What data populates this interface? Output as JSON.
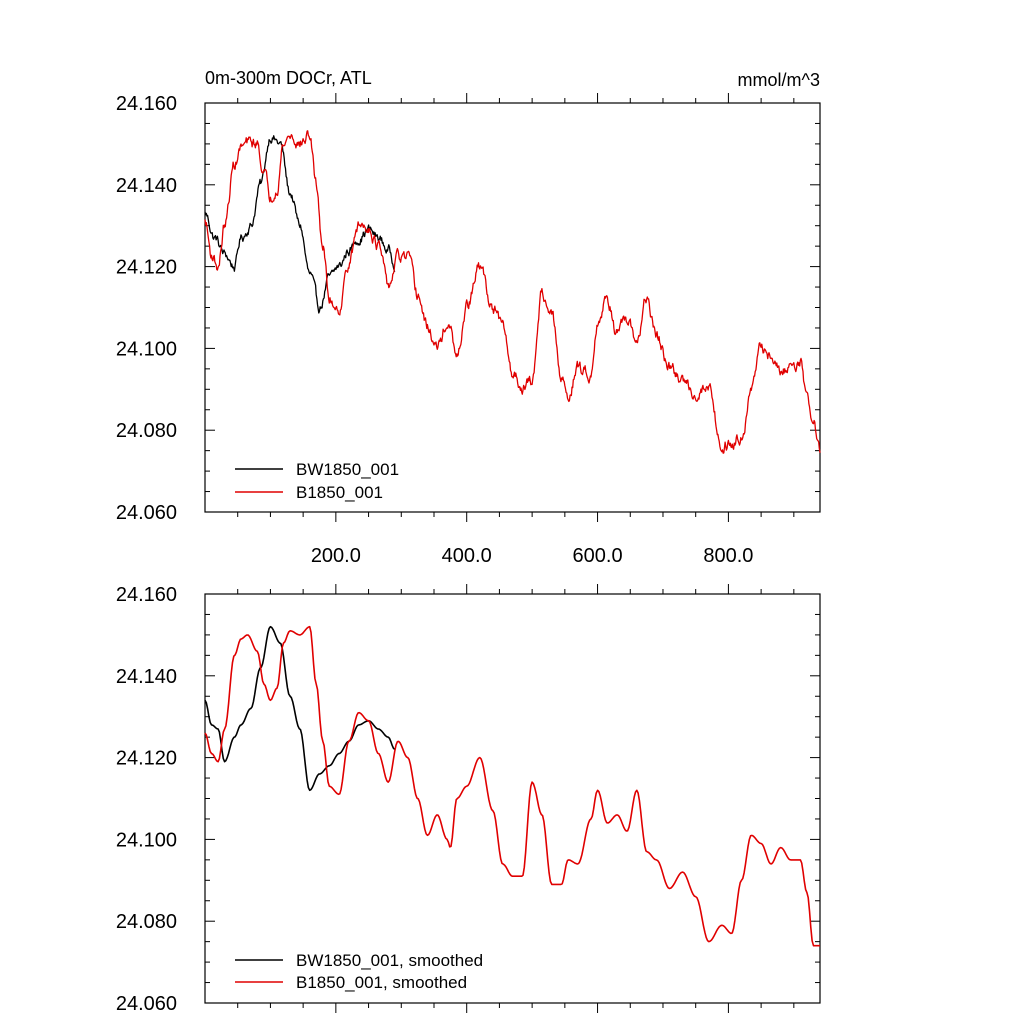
{
  "chart_data": [
    {
      "type": "line",
      "title": "0m-300m DOCr, ATL",
      "units": "mmol/m^3",
      "xlim": [
        0,
        940
      ],
      "ylim": [
        24.06,
        24.16
      ],
      "yticks": [
        "24.060",
        "24.080",
        "24.100",
        "24.120",
        "24.140",
        "24.160"
      ],
      "xticks": [
        "200.0",
        "400.0",
        "600.0",
        "800.0"
      ],
      "legend_position": "bottom-left",
      "series": [
        {
          "name": "BW1850_001",
          "color": "#000000",
          "x": [
            0,
            15,
            30,
            45,
            55,
            70,
            85,
            100,
            115,
            130,
            145,
            160,
            175,
            190,
            205,
            220,
            235,
            250,
            265,
            280,
            290
          ],
          "y": [
            24.133,
            24.127,
            24.123,
            24.12,
            24.127,
            24.13,
            24.14,
            24.152,
            24.15,
            24.138,
            24.13,
            24.118,
            24.11,
            24.117,
            24.12,
            24.124,
            24.127,
            24.129,
            24.127,
            24.124,
            24.121
          ],
          "noise": 0.0018
        },
        {
          "name": "B1850_001",
          "color": "#e00000",
          "x": [
            0,
            10,
            20,
            30,
            45,
            55,
            65,
            80,
            90,
            100,
            110,
            120,
            130,
            145,
            160,
            170,
            180,
            190,
            205,
            220,
            235,
            250,
            265,
            280,
            295,
            310,
            325,
            340,
            355,
            370,
            375,
            385,
            400,
            420,
            440,
            455,
            470,
            485,
            500,
            515,
            530,
            545,
            555,
            570,
            590,
            600,
            615,
            630,
            645,
            660,
            675,
            690,
            710,
            730,
            750,
            770,
            790,
            805,
            820,
            835,
            850,
            865,
            880,
            895,
            910,
            920,
            930,
            940
          ],
          "y": [
            24.131,
            24.123,
            24.12,
            24.13,
            24.145,
            24.149,
            24.15,
            24.15,
            24.143,
            24.137,
            24.14,
            24.15,
            24.152,
            24.15,
            24.152,
            24.14,
            24.125,
            24.112,
            24.11,
            24.121,
            24.13,
            24.13,
            24.125,
            24.115,
            24.122,
            24.122,
            24.113,
            24.105,
            24.1,
            24.106,
            24.104,
            24.097,
            24.11,
            24.12,
            24.11,
            24.105,
            24.094,
            24.091,
            24.092,
            24.114,
            24.108,
            24.092,
            24.089,
            24.095,
            24.094,
            24.107,
            24.112,
            24.104,
            24.106,
            24.102,
            24.112,
            24.103,
            24.095,
            24.092,
            24.089,
            24.091,
            24.076,
            24.077,
            24.079,
            24.09,
            24.1,
            24.098,
            24.094,
            24.096,
            24.097,
            24.088,
            24.082,
            24.075
          ],
          "noise": 0.0022
        }
      ]
    },
    {
      "type": "line",
      "xlim": [
        0,
        940
      ],
      "ylim": [
        24.06,
        24.16
      ],
      "yticks": [
        "24.060",
        "24.080",
        "24.100",
        "24.120",
        "24.140",
        "24.160"
      ],
      "legend_position": "bottom-left",
      "series": [
        {
          "name": "BW1850_001, smoothed",
          "color": "#000000",
          "x": [
            0,
            10,
            20,
            30,
            45,
            55,
            70,
            85,
            100,
            115,
            130,
            145,
            160,
            175,
            190,
            205,
            220,
            235,
            250,
            265,
            280,
            290
          ],
          "y": [
            24.134,
            24.128,
            24.127,
            24.119,
            24.125,
            24.128,
            24.132,
            24.142,
            24.152,
            24.148,
            24.135,
            24.127,
            24.112,
            24.116,
            24.118,
            24.121,
            24.124,
            24.128,
            24.129,
            24.127,
            24.125,
            24.122
          ],
          "noise": 0
        },
        {
          "name": "B1850_001, smoothed",
          "color": "#e00000",
          "x": [
            0,
            10,
            20,
            30,
            45,
            55,
            65,
            80,
            90,
            100,
            110,
            120,
            130,
            145,
            160,
            170,
            180,
            190,
            205,
            220,
            235,
            250,
            265,
            280,
            295,
            310,
            325,
            340,
            355,
            370,
            375,
            385,
            400,
            420,
            440,
            455,
            470,
            485,
            500,
            515,
            530,
            545,
            555,
            570,
            590,
            600,
            615,
            630,
            645,
            660,
            675,
            690,
            710,
            730,
            750,
            770,
            790,
            805,
            820,
            835,
            850,
            865,
            880,
            895,
            910,
            920,
            930,
            940
          ],
          "y": [
            24.126,
            24.121,
            24.119,
            24.127,
            24.145,
            24.149,
            24.15,
            24.146,
            24.138,
            24.134,
            24.137,
            24.148,
            24.151,
            24.15,
            24.152,
            24.138,
            24.124,
            24.113,
            24.111,
            24.124,
            24.131,
            24.129,
            24.121,
            24.114,
            24.124,
            24.12,
            24.11,
            24.101,
            24.106,
            24.1,
            24.098,
            24.11,
            24.113,
            24.12,
            24.107,
            24.094,
            24.091,
            24.091,
            24.114,
            24.106,
            24.089,
            24.089,
            24.095,
            24.094,
            24.105,
            24.112,
            24.104,
            24.106,
            24.102,
            24.112,
            24.097,
            24.095,
            24.088,
            24.092,
            24.086,
            24.075,
            24.079,
            24.077,
            24.09,
            24.101,
            24.099,
            24.094,
            24.098,
            24.095,
            24.095,
            24.087,
            24.074,
            24.074
          ],
          "noise": 0
        }
      ]
    }
  ]
}
